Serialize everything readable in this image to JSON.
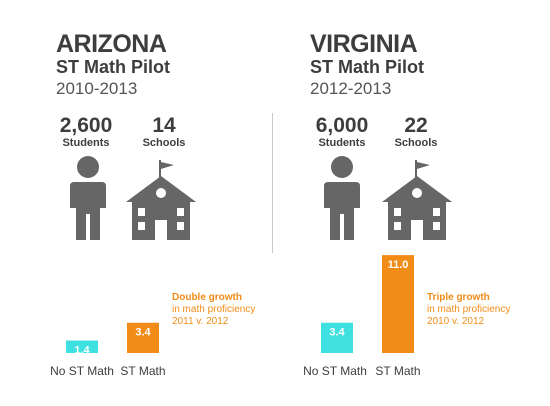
{
  "left": {
    "state": "ARIZONA",
    "pilot": "ST Math Pilot",
    "years": "2010-2013",
    "students_count": "2,600",
    "students_label": "Students",
    "schools_count": "14",
    "schools_label": "Schools",
    "note_title": "Double growth",
    "note_line1": "in math proficiency",
    "note_line2": "2011 v. 2012"
  },
  "right": {
    "state": "VIRGINIA",
    "pilot": "ST Math Pilot",
    "years": "2012-2013",
    "students_count": "6,000",
    "students_label": "Students",
    "schools_count": "22",
    "schools_label": "Schools",
    "note_title": "Triple growth",
    "note_line1": "in math proficiency",
    "note_line2": "2010 v. 2012"
  },
  "colors": {
    "no_st_math": "#3ee0e0",
    "st_math": "#f28c18",
    "icon": "#666666"
  },
  "icons": [
    "student-icon",
    "school-icon"
  ],
  "chart_data": [
    {
      "type": "bar",
      "categories": [
        "No ST Math",
        "ST Math"
      ],
      "values": [
        1.4,
        3.4
      ],
      "ylim": [
        0,
        11.0
      ]
    },
    {
      "type": "bar",
      "categories": [
        "No ST Math",
        "ST Math"
      ],
      "values": [
        3.4,
        11.0
      ],
      "ylim": [
        0,
        11.0
      ]
    }
  ]
}
